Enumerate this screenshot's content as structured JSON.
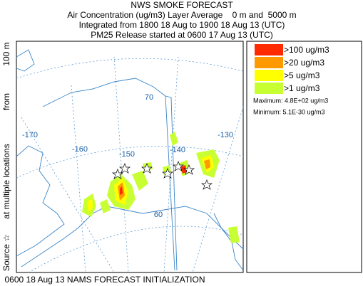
{
  "header": {
    "title": "NWS SMOKE FORECAST",
    "lines": [
      "Air Concentration (ug/m3) Layer Average    0 m and  5000 m",
      "Integrated from 1800 18 Aug to 1900 18 Aug 13 (UTC)",
      "PM25 Release started at 0600 17 Aug 13 (UTC)"
    ]
  },
  "side_label": [
    "Source ☆",
    "at multiple locations",
    "from",
    "100 m"
  ],
  "footer": "0600 18 Aug 13 NAMS FORECAST INITIALIZATION",
  "map": {
    "grid_labels": [
      "-170",
      "-160",
      "-150",
      "-140",
      "-130",
      "70",
      "60"
    ]
  },
  "legend": {
    "entries": [
      {
        "label": ">100 ug/m3",
        "color": "#ff2a00"
      },
      {
        "label": ">20 ug/m3",
        "color": "#ff9900"
      },
      {
        "label": ">5 ug/m3",
        "color": "#ffff00"
      },
      {
        "label": ">1 ug/m3",
        "color": "#c8ff33"
      }
    ],
    "maximum": "Maximum: 4.8E+02 ug/m3",
    "minimum": "Minimum: 5.1E-30 ug/m3"
  }
}
